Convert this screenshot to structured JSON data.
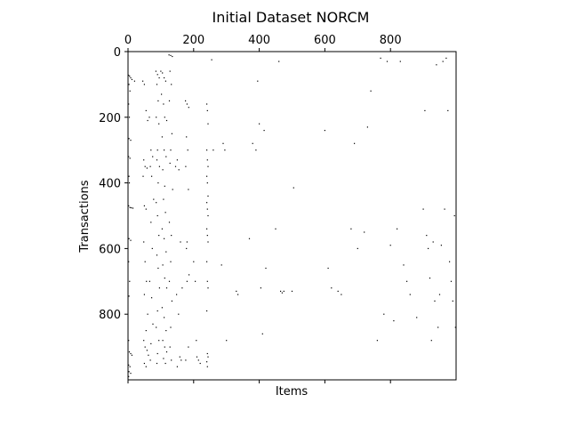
{
  "chart_data": {
    "type": "scatter",
    "title": "Initial Dataset NORCM",
    "xlabel": "Items",
    "ylabel": "Transactions",
    "xlim": [
      0,
      1000
    ],
    "ylim": [
      1000,
      0
    ],
    "x_ticks": [
      0,
      200,
      400,
      600,
      800
    ],
    "y_ticks": [
      0,
      200,
      400,
      600,
      800
    ],
    "x_tick_labels": [
      "0",
      "200",
      "400",
      "600",
      "800"
    ],
    "y_tick_labels": [
      "0",
      "200",
      "400",
      "600",
      "800"
    ],
    "x_tick_position": "top",
    "grid": false,
    "marker_color": "#000000",
    "points": [
      [
        2,
        72
      ],
      [
        5,
        75
      ],
      [
        8,
        80
      ],
      [
        12,
        85
      ],
      [
        20,
        90
      ],
      [
        3,
        100
      ],
      [
        6,
        120
      ],
      [
        2,
        160
      ],
      [
        4,
        200
      ],
      [
        3,
        265
      ],
      [
        8,
        270
      ],
      [
        2,
        320
      ],
      [
        6,
        325
      ],
      [
        3,
        380
      ],
      [
        4,
        400
      ],
      [
        2,
        470
      ],
      [
        6,
        475
      ],
      [
        10,
        476
      ],
      [
        15,
        477
      ],
      [
        3,
        570
      ],
      [
        8,
        575
      ],
      [
        2,
        640
      ],
      [
        5,
        700
      ],
      [
        3,
        745
      ],
      [
        2,
        880
      ],
      [
        4,
        915
      ],
      [
        8,
        920
      ],
      [
        12,
        925
      ],
      [
        2,
        955
      ],
      [
        6,
        960
      ],
      [
        3,
        975
      ],
      [
        8,
        980
      ],
      [
        2,
        990
      ],
      [
        45,
        90
      ],
      [
        50,
        100
      ],
      [
        55,
        180
      ],
      [
        60,
        210
      ],
      [
        48,
        330
      ],
      [
        52,
        350
      ],
      [
        58,
        355
      ],
      [
        46,
        380
      ],
      [
        50,
        470
      ],
      [
        55,
        480
      ],
      [
        48,
        580
      ],
      [
        52,
        640
      ],
      [
        56,
        700
      ],
      [
        50,
        740
      ],
      [
        60,
        800
      ],
      [
        55,
        850
      ],
      [
        48,
        880
      ],
      [
        52,
        900
      ],
      [
        58,
        910
      ],
      [
        62,
        925
      ],
      [
        50,
        950
      ],
      [
        55,
        960
      ],
      [
        65,
        200
      ],
      [
        70,
        300
      ],
      [
        75,
        320
      ],
      [
        68,
        350
      ],
      [
        72,
        380
      ],
      [
        78,
        450
      ],
      [
        70,
        520
      ],
      [
        74,
        600
      ],
      [
        66,
        700
      ],
      [
        72,
        750
      ],
      [
        76,
        830
      ],
      [
        70,
        890
      ],
      [
        68,
        940
      ],
      [
        85,
        60
      ],
      [
        90,
        70
      ],
      [
        95,
        80
      ],
      [
        88,
        100
      ],
      [
        92,
        150
      ],
      [
        86,
        200
      ],
      [
        94,
        220
      ],
      [
        90,
        300
      ],
      [
        88,
        330
      ],
      [
        96,
        350
      ],
      [
        92,
        400
      ],
      [
        86,
        460
      ],
      [
        90,
        500
      ],
      [
        94,
        560
      ],
      [
        88,
        620
      ],
      [
        92,
        660
      ],
      [
        96,
        720
      ],
      [
        90,
        790
      ],
      [
        86,
        840
      ],
      [
        94,
        880
      ],
      [
        90,
        920
      ],
      [
        88,
        950
      ],
      [
        100,
        60
      ],
      [
        105,
        65
      ],
      [
        110,
        80
      ],
      [
        115,
        90
      ],
      [
        102,
        130
      ],
      [
        108,
        160
      ],
      [
        112,
        200
      ],
      [
        118,
        210
      ],
      [
        104,
        260
      ],
      [
        110,
        300
      ],
      [
        116,
        320
      ],
      [
        106,
        360
      ],
      [
        112,
        410
      ],
      [
        108,
        450
      ],
      [
        114,
        490
      ],
      [
        104,
        540
      ],
      [
        110,
        570
      ],
      [
        116,
        610
      ],
      [
        106,
        650
      ],
      [
        112,
        690
      ],
      [
        118,
        720
      ],
      [
        104,
        780
      ],
      [
        110,
        810
      ],
      [
        116,
        850
      ],
      [
        106,
        880
      ],
      [
        112,
        900
      ],
      [
        118,
        915
      ],
      [
        108,
        935
      ],
      [
        114,
        950
      ],
      [
        125,
        10
      ],
      [
        130,
        12
      ],
      [
        135,
        15
      ],
      [
        128,
        60
      ],
      [
        132,
        100
      ],
      [
        126,
        150
      ],
      [
        134,
        250
      ],
      [
        130,
        300
      ],
      [
        128,
        340
      ],
      [
        136,
        420
      ],
      [
        126,
        520
      ],
      [
        132,
        560
      ],
      [
        130,
        640
      ],
      [
        126,
        700
      ],
      [
        134,
        760
      ],
      [
        130,
        840
      ],
      [
        128,
        900
      ],
      [
        132,
        940
      ],
      [
        145,
        350
      ],
      [
        150,
        330
      ],
      [
        155,
        360
      ],
      [
        160,
        580
      ],
      [
        165,
        720
      ],
      [
        148,
        740
      ],
      [
        154,
        800
      ],
      [
        158,
        930
      ],
      [
        162,
        940
      ],
      [
        150,
        960
      ],
      [
        175,
        150
      ],
      [
        180,
        160
      ],
      [
        185,
        170
      ],
      [
        178,
        260
      ],
      [
        182,
        300
      ],
      [
        176,
        350
      ],
      [
        184,
        420
      ],
      [
        180,
        580
      ],
      [
        178,
        600
      ],
      [
        186,
        680
      ],
      [
        180,
        700
      ],
      [
        184,
        900
      ],
      [
        176,
        940
      ],
      [
        200,
        640
      ],
      [
        205,
        700
      ],
      [
        210,
        930
      ],
      [
        215,
        940
      ],
      [
        220,
        950
      ],
      [
        208,
        880
      ],
      [
        240,
        160
      ],
      [
        242,
        180
      ],
      [
        244,
        220
      ],
      [
        240,
        300
      ],
      [
        242,
        330
      ],
      [
        244,
        350
      ],
      [
        240,
        380
      ],
      [
        242,
        400
      ],
      [
        244,
        440
      ],
      [
        240,
        460
      ],
      [
        242,
        480
      ],
      [
        244,
        500
      ],
      [
        240,
        540
      ],
      [
        242,
        560
      ],
      [
        244,
        580
      ],
      [
        240,
        640
      ],
      [
        242,
        700
      ],
      [
        244,
        720
      ],
      [
        240,
        790
      ],
      [
        242,
        920
      ],
      [
        244,
        930
      ],
      [
        240,
        945
      ],
      [
        242,
        960
      ],
      [
        255,
        25
      ],
      [
        260,
        300
      ],
      [
        290,
        280
      ],
      [
        295,
        300
      ],
      [
        285,
        650
      ],
      [
        300,
        880
      ],
      [
        330,
        730
      ],
      [
        335,
        740
      ],
      [
        370,
        570
      ],
      [
        380,
        280
      ],
      [
        390,
        300
      ],
      [
        395,
        90
      ],
      [
        400,
        220
      ],
      [
        405,
        720
      ],
      [
        410,
        860
      ],
      [
        415,
        240
      ],
      [
        420,
        660
      ],
      [
        450,
        540
      ],
      [
        460,
        30
      ],
      [
        465,
        730
      ],
      [
        470,
        735
      ],
      [
        475,
        730
      ],
      [
        500,
        730
      ],
      [
        505,
        415
      ],
      [
        600,
        240
      ],
      [
        610,
        660
      ],
      [
        620,
        720
      ],
      [
        640,
        730
      ],
      [
        650,
        740
      ],
      [
        680,
        540
      ],
      [
        690,
        280
      ],
      [
        700,
        600
      ],
      [
        720,
        550
      ],
      [
        730,
        230
      ],
      [
        740,
        120
      ],
      [
        760,
        880
      ],
      [
        770,
        20
      ],
      [
        780,
        800
      ],
      [
        790,
        30
      ],
      [
        800,
        590
      ],
      [
        810,
        820
      ],
      [
        820,
        540
      ],
      [
        830,
        30
      ],
      [
        840,
        650
      ],
      [
        850,
        700
      ],
      [
        860,
        740
      ],
      [
        880,
        810
      ],
      [
        900,
        480
      ],
      [
        905,
        180
      ],
      [
        910,
        560
      ],
      [
        915,
        600
      ],
      [
        920,
        690
      ],
      [
        925,
        880
      ],
      [
        930,
        580
      ],
      [
        935,
        760
      ],
      [
        940,
        40
      ],
      [
        945,
        840
      ],
      [
        950,
        740
      ],
      [
        955,
        590
      ],
      [
        960,
        30
      ],
      [
        965,
        480
      ],
      [
        970,
        20
      ],
      [
        975,
        180
      ],
      [
        980,
        640
      ],
      [
        985,
        700
      ],
      [
        990,
        760
      ],
      [
        995,
        500
      ],
      [
        998,
        840
      ]
    ]
  }
}
